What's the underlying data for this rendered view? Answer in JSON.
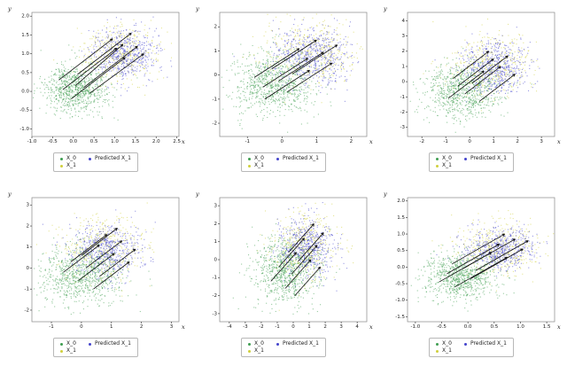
{
  "figure": {
    "background": "#ffffff",
    "rows": 2,
    "cols": 3
  },
  "axis": {
    "x_label": "x",
    "y_label": "y"
  },
  "legend": {
    "items": [
      {
        "label": "X_0",
        "color": "#3f9e51"
      },
      {
        "label": "Predicted X_1",
        "color": "#4444cc"
      },
      {
        "label": "X_1",
        "color": "#cfcf3c"
      }
    ]
  },
  "colors": {
    "points_green": "#3f9e51",
    "points_blue": "#4444cc",
    "points_yellow": "#cfcf3c",
    "arrow": "#111111",
    "frame": "#888888",
    "tick_text": "#222222"
  },
  "chart_data": [
    {
      "type": "scatter",
      "seed": 1,
      "xlim": [
        -1.0,
        2.55
      ],
      "ylim": [
        -1.2,
        2.1
      ],
      "x_ticks": [
        -1.0,
        -0.5,
        0.0,
        0.5,
        1.0,
        1.5,
        2.0,
        2.5
      ],
      "x_tick_decimals": 1,
      "y_ticks": [
        -1.0,
        -0.5,
        0.0,
        0.5,
        1.0,
        1.5,
        2.0
      ],
      "y_tick_decimals": 1,
      "series": [
        {
          "name": "X_0",
          "color": "#3f9e51",
          "mean": [
            0.05,
            0.1
          ],
          "std": [
            0.38,
            0.32
          ],
          "count": 850
        },
        {
          "name": "X_1",
          "color": "#cfcf3c",
          "mean": [
            1.1,
            1.05
          ],
          "std": [
            0.45,
            0.4
          ],
          "count": 420
        },
        {
          "name": "Predicted X_1",
          "color": "#4444cc",
          "mean": [
            1.2,
            1.0
          ],
          "std": [
            0.38,
            0.34
          ],
          "count": 560
        }
      ],
      "arrows": [
        [
          -0.35,
          0.3,
          0.95,
          1.4
        ],
        [
          -0.25,
          0.05,
          1.05,
          1.15
        ],
        [
          -0.05,
          -0.2,
          1.25,
          0.9
        ],
        [
          0.1,
          0.45,
          1.4,
          1.55
        ],
        [
          0.25,
          0.1,
          1.55,
          1.2
        ],
        [
          0.4,
          -0.05,
          1.7,
          1.0
        ],
        [
          0.05,
          0.15,
          1.2,
          1.25
        ]
      ]
    },
    {
      "type": "scatter",
      "seed": 2,
      "xlim": [
        -1.8,
        2.45
      ],
      "ylim": [
        -2.55,
        2.6
      ],
      "x_ticks": [
        -1,
        0,
        1,
        2
      ],
      "x_tick_decimals": 0,
      "y_ticks": [
        -2,
        -1,
        0,
        1,
        2
      ],
      "y_tick_decimals": 0,
      "series": [
        {
          "name": "X_0",
          "color": "#3f9e51",
          "mean": [
            -0.25,
            -0.35
          ],
          "std": [
            0.6,
            0.65
          ],
          "count": 850
        },
        {
          "name": "X_1",
          "color": "#cfcf3c",
          "mean": [
            0.8,
            0.9
          ],
          "std": [
            0.65,
            0.7
          ],
          "count": 420
        },
        {
          "name": "Predicted X_1",
          "color": "#4444cc",
          "mean": [
            0.85,
            0.8
          ],
          "std": [
            0.55,
            0.6
          ],
          "count": 560
        }
      ],
      "arrows": [
        [
          -0.8,
          -0.1,
          0.5,
          1.1
        ],
        [
          -0.55,
          -0.5,
          0.75,
          0.7
        ],
        [
          -0.3,
          0.25,
          1.0,
          1.45
        ],
        [
          -0.1,
          -0.25,
          1.2,
          0.95
        ],
        [
          0.15,
          -0.7,
          1.45,
          0.5
        ],
        [
          0.3,
          0.05,
          1.6,
          1.25
        ],
        [
          -0.5,
          -1.0,
          0.8,
          0.2
        ]
      ]
    },
    {
      "type": "scatter",
      "seed": 3,
      "xlim": [
        -2.6,
        3.55
      ],
      "ylim": [
        -3.6,
        4.55
      ],
      "x_ticks": [
        -2,
        -1,
        0,
        1,
        2,
        3
      ],
      "x_tick_decimals": 0,
      "y_ticks": [
        -3,
        -2,
        -1,
        0,
        1,
        2,
        3,
        4
      ],
      "y_tick_decimals": 0,
      "series": [
        {
          "name": "X_0",
          "color": "#3f9e51",
          "mean": [
            -0.3,
            -0.6
          ],
          "std": [
            0.8,
            0.95
          ],
          "count": 850
        },
        {
          "name": "X_1",
          "color": "#cfcf3c",
          "mean": [
            0.9,
            1.1
          ],
          "std": [
            0.85,
            1.0
          ],
          "count": 420
        },
        {
          "name": "Predicted X_1",
          "color": "#4444cc",
          "mean": [
            1.0,
            1.0
          ],
          "std": [
            0.7,
            0.85
          ],
          "count": 560
        }
      ],
      "arrows": [
        [
          -0.9,
          -1.1,
          0.6,
          0.7
        ],
        [
          -0.5,
          -0.3,
          1.0,
          1.5
        ],
        [
          -0.2,
          -0.8,
          1.3,
          1.0
        ],
        [
          0.1,
          -0.1,
          1.6,
          1.7
        ],
        [
          0.4,
          -1.3,
          1.9,
          0.5
        ],
        [
          -0.7,
          0.2,
          0.8,
          2.0
        ]
      ]
    },
    {
      "type": "scatter",
      "seed": 4,
      "xlim": [
        -1.65,
        3.25
      ],
      "ylim": [
        -2.55,
        3.35
      ],
      "x_ticks": [
        -1,
        0,
        1,
        2,
        3
      ],
      "x_tick_decimals": 0,
      "y_ticks": [
        -2,
        -1,
        0,
        1,
        2,
        3
      ],
      "y_tick_decimals": 0,
      "series": [
        {
          "name": "X_0",
          "color": "#3f9e51",
          "mean": [
            0.0,
            -0.3
          ],
          "std": [
            0.65,
            0.7
          ],
          "count": 850
        },
        {
          "name": "X_1",
          "color": "#cfcf3c",
          "mean": [
            0.75,
            1.0
          ],
          "std": [
            0.7,
            0.75
          ],
          "count": 420
        },
        {
          "name": "Predicted X_1",
          "color": "#4444cc",
          "mean": [
            0.8,
            0.9
          ],
          "std": [
            0.6,
            0.65
          ],
          "count": 560
        }
      ],
      "arrows": [
        [
          -0.6,
          -0.2,
          0.6,
          1.1
        ],
        [
          -0.35,
          0.3,
          0.85,
          1.6
        ],
        [
          -0.1,
          -0.6,
          1.1,
          0.7
        ],
        [
          0.15,
          0.0,
          1.35,
          1.3
        ],
        [
          0.4,
          -1.0,
          1.6,
          0.3
        ],
        [
          0.0,
          0.6,
          1.2,
          1.9
        ],
        [
          0.6,
          -0.4,
          1.8,
          0.9
        ]
      ]
    },
    {
      "type": "scatter",
      "seed": 5,
      "xlim": [
        -4.6,
        4.6
      ],
      "ylim": [
        -3.45,
        3.45
      ],
      "x_ticks": [
        -4,
        -3,
        -2,
        -1,
        0,
        1,
        2,
        3,
        4
      ],
      "x_tick_decimals": 0,
      "y_ticks": [
        -3,
        -2,
        -1,
        0,
        1,
        2,
        3
      ],
      "y_tick_decimals": 0,
      "series": [
        {
          "name": "X_0",
          "color": "#3f9e51",
          "mean": [
            -0.5,
            -0.6
          ],
          "std": [
            1.0,
            0.95
          ],
          "count": 850
        },
        {
          "name": "X_1",
          "color": "#cfcf3c",
          "mean": [
            0.7,
            0.8
          ],
          "std": [
            1.0,
            0.95
          ],
          "count": 420
        },
        {
          "name": "Predicted X_1",
          "color": "#4444cc",
          "mean": [
            0.8,
            0.7
          ],
          "std": [
            0.85,
            0.8
          ],
          "count": 560
        }
      ],
      "arrows": [
        [
          -1.4,
          -1.2,
          0.2,
          0.4
        ],
        [
          -0.9,
          -0.4,
          0.7,
          1.2
        ],
        [
          -0.5,
          -1.6,
          1.1,
          0.0
        ],
        [
          -0.1,
          -0.8,
          1.5,
          0.8
        ],
        [
          0.3,
          -0.1,
          1.9,
          1.5
        ],
        [
          -0.3,
          0.4,
          1.3,
          2.0
        ],
        [
          0.1,
          -2.0,
          1.7,
          -0.4
        ]
      ]
    },
    {
      "type": "scatter",
      "seed": 6,
      "xlim": [
        -1.15,
        1.65
      ],
      "ylim": [
        -1.65,
        2.1
      ],
      "x_ticks": [
        -1.0,
        -0.5,
        0.0,
        0.5,
        1.0,
        1.5
      ],
      "x_tick_decimals": 1,
      "y_ticks": [
        -1.5,
        -1.0,
        -0.5,
        0.0,
        0.5,
        1.0,
        1.5,
        2.0
      ],
      "y_tick_decimals": 1,
      "series": [
        {
          "name": "X_0",
          "color": "#3f9e51",
          "mean": [
            -0.15,
            -0.25
          ],
          "std": [
            0.33,
            0.34
          ],
          "count": 850
        },
        {
          "name": "X_1",
          "color": "#cfcf3c",
          "mean": [
            0.55,
            0.6
          ],
          "std": [
            0.38,
            0.4
          ],
          "count": 420
        },
        {
          "name": "Predicted X_1",
          "color": "#4444cc",
          "mean": [
            0.6,
            0.55
          ],
          "std": [
            0.33,
            0.32
          ],
          "count": 560
        }
      ],
      "arrows": [
        [
          -0.55,
          -0.45,
          0.45,
          0.45
        ],
        [
          -0.4,
          -0.2,
          0.6,
          0.7
        ],
        [
          -0.25,
          -0.6,
          0.75,
          0.3
        ],
        [
          -0.1,
          -0.05,
          0.9,
          0.85
        ],
        [
          0.05,
          -0.35,
          1.05,
          0.55
        ],
        [
          -0.3,
          0.1,
          0.7,
          1.0
        ],
        [
          0.15,
          -0.1,
          1.15,
          0.8
        ]
      ]
    }
  ]
}
